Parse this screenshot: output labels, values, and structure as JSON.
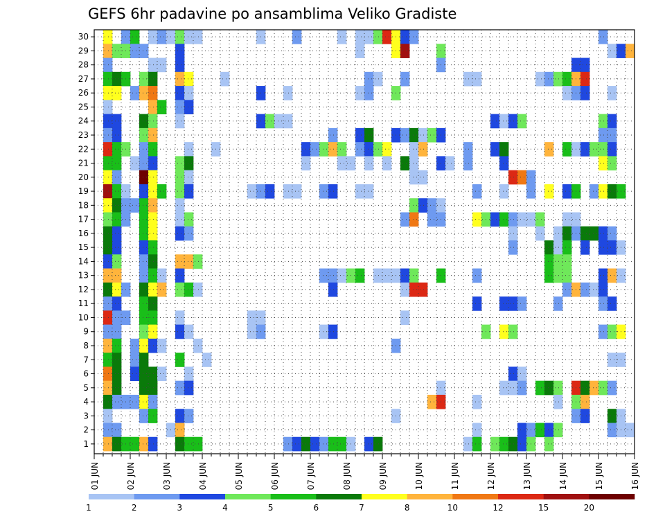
{
  "chart_data": {
    "type": "heatmap",
    "title": "GEFS 6hr padavine po ansamblima Veliko Gradiste",
    "x_tick_labels": [
      "01 JUN",
      "02 JUN",
      "03 JUN",
      "04 JUN",
      "05 JUN",
      "06 JUN",
      "07 JUN",
      "08 JUN",
      "09 JUN",
      "10 JUN",
      "11 JUN",
      "12 JUN",
      "13 JUN",
      "14 JUN",
      "15 JUN",
      "16 JUN"
    ],
    "y_tick_labels": [
      "1",
      "2",
      "3",
      "4",
      "5",
      "6",
      "7",
      "8",
      "9",
      "10",
      "11",
      "12",
      "13",
      "14",
      "15",
      "16",
      "17",
      "18",
      "19",
      "20",
      "21",
      "22",
      "23",
      "24",
      "25",
      "26",
      "27",
      "28",
      "29",
      "30"
    ],
    "ensemble_members": 30,
    "time_steps": 60,
    "time_step_hours": 6,
    "grid": "dotted",
    "colorbar": {
      "levels": [
        "1",
        "2",
        "3",
        "4",
        "5",
        "6",
        "7",
        "8",
        "10",
        "12",
        "15",
        "20"
      ],
      "colors": [
        "#a8c4f4",
        "#6e9af0",
        "#1f48e0",
        "#6fe85a",
        "#19be19",
        "#0a7a0a",
        "#ffff1e",
        "#ffb43c",
        "#f07814",
        "#dc2814",
        "#a01010",
        "#6e0000"
      ]
    },
    "cells": [
      {
        "member": 30,
        "t": [
          1,
          3
        ],
        "c": [
          6,
          1
        ]
      },
      {
        "member": 30,
        "t": [
          4,
          6,
          7,
          8,
          9,
          10,
          11,
          18,
          22,
          27,
          29,
          30,
          31,
          32,
          33,
          34,
          35,
          56
        ],
        "c": [
          4,
          0,
          1,
          0,
          3,
          0,
          0,
          0,
          1,
          0,
          0,
          0,
          3,
          9,
          6,
          2,
          1,
          1
        ]
      },
      {
        "member": 29,
        "t": [
          1,
          2,
          3,
          4,
          5,
          9,
          29,
          33,
          34,
          38,
          57,
          58,
          59
        ],
        "c": [
          7,
          3,
          3,
          1,
          1,
          2,
          0,
          6,
          10,
          3,
          0,
          2,
          7
        ]
      },
      {
        "member": 28,
        "t": [
          1,
          6,
          7,
          9,
          38,
          53,
          54
        ],
        "c": [
          1,
          0,
          0,
          2,
          1,
          2,
          2
        ]
      },
      {
        "member": 27,
        "t": [
          1,
          2,
          3,
          5,
          6,
          9,
          10,
          14,
          30,
          31,
          34,
          41,
          42,
          49,
          50,
          51,
          52,
          53,
          54
        ],
        "c": [
          4,
          5,
          4,
          3,
          5,
          7,
          6,
          0,
          1,
          0,
          1,
          0,
          0,
          0,
          1,
          3,
          4,
          7,
          9
        ]
      },
      {
        "member": 26,
        "t": [
          1,
          2,
          4,
          5,
          6,
          9,
          10,
          18,
          21,
          29,
          30,
          33,
          52,
          53,
          54,
          57
        ],
        "c": [
          6,
          6,
          1,
          7,
          8,
          2,
          0,
          2,
          0,
          0,
          1,
          3,
          0,
          1,
          2,
          0
        ]
      },
      {
        "member": 25,
        "t": [
          1,
          6,
          7,
          9,
          10
        ],
        "c": [
          0,
          7,
          4,
          1,
          2
        ]
      },
      {
        "member": 24,
        "t": [
          1,
          2,
          5,
          6,
          9,
          18,
          19,
          20,
          21,
          44,
          45,
          46,
          47,
          56,
          57
        ],
        "c": [
          2,
          2,
          5,
          3,
          0,
          2,
          3,
          0,
          0,
          2,
          0,
          2,
          3,
          3,
          2
        ]
      },
      {
        "member": 23,
        "t": [
          1,
          2,
          5,
          6,
          26,
          29,
          30,
          33,
          34,
          35,
          36,
          37,
          38,
          56,
          57
        ],
        "c": [
          1,
          2,
          3,
          7,
          1,
          2,
          5,
          2,
          1,
          5,
          0,
          3,
          2,
          1,
          1
        ]
      },
      {
        "member": 22,
        "t": [
          1,
          2,
          3,
          5,
          6,
          10,
          13,
          23,
          24,
          25,
          26,
          27,
          29,
          30,
          31,
          32,
          35,
          36,
          41,
          44,
          45,
          50,
          52,
          53,
          54,
          55,
          56,
          57
        ],
        "c": [
          9,
          4,
          3,
          1,
          4,
          0,
          0,
          2,
          1,
          3,
          7,
          3,
          1,
          2,
          3,
          6,
          0,
          7,
          1,
          2,
          5,
          7,
          4,
          0,
          2,
          3,
          3,
          2
        ]
      },
      {
        "member": 21,
        "t": [
          1,
          2,
          4,
          5,
          6,
          9,
          10,
          23,
          27,
          28,
          30,
          32,
          34,
          35,
          38,
          39,
          41,
          45,
          56,
          57
        ],
        "c": [
          4,
          4,
          0,
          1,
          2,
          3,
          5,
          0,
          0,
          0,
          0,
          0,
          5,
          0,
          2,
          0,
          1,
          2,
          6,
          3
        ]
      },
      {
        "member": 20,
        "t": [
          1,
          2,
          5,
          6,
          9,
          10,
          35,
          36,
          46,
          47,
          48
        ],
        "c": [
          6,
          1,
          11,
          6,
          3,
          0,
          0,
          0,
          9,
          8,
          1
        ]
      },
      {
        "member": 19,
        "t": [
          1,
          2,
          3,
          5,
          6,
          7,
          9,
          10,
          17,
          18,
          19,
          21,
          22,
          25,
          26,
          29,
          30,
          42,
          45,
          48,
          50,
          52,
          53,
          55,
          56,
          57,
          58
        ],
        "c": [
          10,
          4,
          0,
          2,
          6,
          4,
          3,
          2,
          0,
          1,
          2,
          0,
          0,
          1,
          2,
          0,
          0,
          1,
          0,
          1,
          6,
          2,
          4,
          1,
          6,
          5,
          4
        ]
      },
      {
        "member": 18,
        "t": [
          1,
          2,
          3,
          4,
          5,
          6,
          9,
          35,
          36,
          37,
          38
        ],
        "c": [
          6,
          5,
          1,
          1,
          4,
          7,
          0,
          3,
          2,
          1,
          0
        ]
      },
      {
        "member": 17,
        "t": [
          1,
          2,
          3,
          5,
          6,
          9,
          10,
          34,
          35,
          37,
          38,
          42,
          43,
          44,
          45,
          46,
          47,
          48,
          49,
          52,
          53
        ],
        "c": [
          3,
          4,
          1,
          4,
          6,
          0,
          3,
          1,
          8,
          1,
          1,
          6,
          3,
          2,
          4,
          1,
          0,
          0,
          3,
          0,
          0
        ]
      },
      {
        "member": 16,
        "t": [
          1,
          2,
          5,
          6,
          9,
          10,
          46,
          49,
          51,
          52,
          53,
          54,
          55,
          56,
          57
        ],
        "c": [
          5,
          2,
          4,
          6,
          2,
          1,
          0,
          0,
          0,
          5,
          1,
          5,
          5,
          2,
          1
        ]
      },
      {
        "member": 15,
        "t": [
          1,
          2,
          5,
          6,
          46,
          50,
          51,
          52,
          54,
          56,
          57,
          58
        ],
        "c": [
          5,
          2,
          2,
          4,
          1,
          5,
          0,
          4,
          2,
          2,
          2,
          0
        ]
      },
      {
        "member": 14,
        "t": [
          1,
          2,
          5,
          6,
          9,
          10,
          11,
          50,
          51,
          52
        ],
        "c": [
          2,
          3,
          1,
          5,
          7,
          7,
          3,
          4,
          3,
          3
        ]
      },
      {
        "member": 13,
        "t": [
          1,
          2,
          5,
          6,
          7,
          9,
          25,
          26,
          27,
          28,
          29,
          31,
          32,
          33,
          34,
          35,
          38,
          42,
          50,
          51,
          52,
          56,
          57,
          58
        ],
        "c": [
          7,
          7,
          1,
          4,
          0,
          2,
          1,
          1,
          0,
          3,
          4,
          0,
          0,
          0,
          2,
          3,
          4,
          1,
          4,
          3,
          3,
          2,
          7,
          0
        ]
      },
      {
        "member": 12,
        "t": [
          1,
          2,
          3,
          5,
          6,
          7,
          9,
          10,
          11,
          26,
          34,
          35,
          36,
          52,
          53,
          54,
          55,
          56
        ],
        "c": [
          5,
          6,
          1,
          5,
          6,
          7,
          3,
          4,
          0,
          2,
          0,
          9,
          9,
          1,
          7,
          1,
          0,
          2
        ]
      },
      {
        "member": 11,
        "t": [
          1,
          2,
          5,
          6,
          42,
          45,
          46,
          47,
          51,
          56,
          57
        ],
        "c": [
          1,
          2,
          4,
          5,
          2,
          2,
          2,
          1,
          1,
          1,
          2
        ]
      },
      {
        "member": 10,
        "t": [
          1,
          2,
          3,
          5,
          6,
          9,
          17,
          18,
          34
        ],
        "c": [
          9,
          1,
          1,
          4,
          4,
          0,
          0,
          0,
          0
        ]
      },
      {
        "member": 9,
        "t": [
          1,
          2,
          5,
          6,
          9,
          10,
          17,
          18,
          25,
          26,
          43,
          45,
          46,
          56,
          57,
          58
        ],
        "c": [
          1,
          1,
          3,
          6,
          2,
          0,
          0,
          1,
          0,
          2,
          3,
          6,
          3,
          1,
          3,
          6
        ]
      },
      {
        "member": 8,
        "t": [
          1,
          2,
          4,
          5,
          6,
          7,
          11,
          33
        ],
        "c": [
          7,
          4,
          1,
          6,
          2,
          0,
          0,
          1
        ]
      },
      {
        "member": 7,
        "t": [
          1,
          2,
          4,
          5,
          9,
          12,
          57,
          58
        ],
        "c": [
          4,
          5,
          1,
          5,
          4,
          0,
          0,
          0
        ]
      },
      {
        "member": 6,
        "t": [
          1,
          2,
          4,
          5,
          6,
          7,
          10,
          46,
          47
        ],
        "c": [
          8,
          5,
          2,
          5,
          5,
          0,
          0,
          2,
          0
        ]
      },
      {
        "member": 5,
        "t": [
          1,
          2,
          5,
          6,
          9,
          10,
          38,
          45,
          46,
          47,
          49,
          50,
          51,
          53,
          54,
          55,
          56,
          57
        ],
        "c": [
          7,
          5,
          5,
          5,
          1,
          2,
          0,
          0,
          0,
          1,
          4,
          5,
          3,
          9,
          5,
          7,
          3,
          1
        ]
      },
      {
        "member": 4,
        "t": [
          1,
          2,
          3,
          4,
          5,
          6,
          37,
          38,
          42,
          51,
          53,
          54
        ],
        "c": [
          5,
          1,
          1,
          1,
          6,
          1,
          7,
          9,
          0,
          0,
          3,
          7
        ]
      },
      {
        "member": 3,
        "t": [
          1,
          5,
          6,
          9,
          10,
          33,
          53,
          54,
          57,
          58
        ],
        "c": [
          0,
          1,
          4,
          2,
          1,
          0,
          1,
          2,
          5,
          0
        ]
      },
      {
        "member": 2,
        "t": [
          1,
          2,
          8,
          9,
          42,
          47,
          48,
          49,
          50,
          51,
          57,
          58,
          59
        ],
        "c": [
          1,
          1,
          0,
          7,
          0,
          2,
          1,
          4,
          2,
          3,
          1,
          0,
          0
        ]
      },
      {
        "member": 1,
        "t": [
          1,
          2,
          3,
          4,
          5,
          6,
          9,
          10,
          11,
          21,
          22,
          23,
          24,
          25,
          26,
          27,
          28,
          30,
          31,
          41,
          42,
          44,
          45,
          46,
          47,
          48,
          50
        ],
        "c": [
          7,
          5,
          4,
          4,
          7,
          2,
          5,
          4,
          4,
          1,
          2,
          5,
          2,
          1,
          4,
          4,
          0,
          2,
          5,
          0,
          4,
          3,
          4,
          5,
          2,
          3,
          3
        ]
      }
    ]
  }
}
